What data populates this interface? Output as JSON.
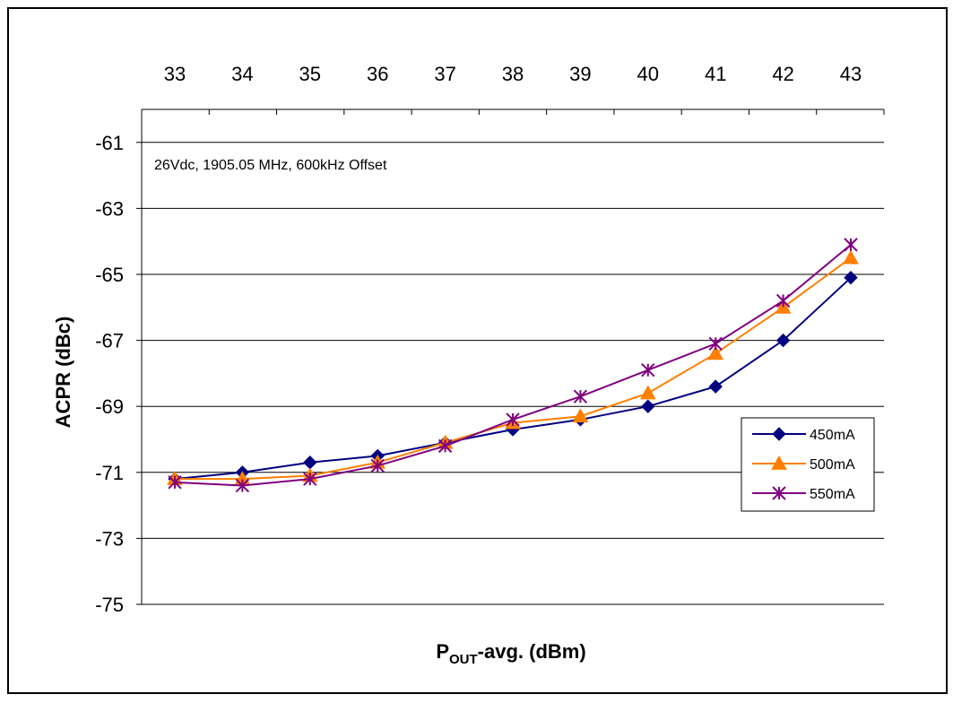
{
  "chart_data": {
    "type": "line",
    "title": "",
    "xlabel": {
      "main": "P",
      "subscript": "OUT",
      "rest": "-avg. (dBm)"
    },
    "ylabel": "ACPR (dBc)",
    "annotation": "26Vdc, 1905.05 MHz, 600kHz Offset",
    "xlim": [
      33,
      43
    ],
    "ylim": [
      -75,
      -60
    ],
    "x_ticks": [
      "33",
      "34",
      "35",
      "36",
      "37",
      "38",
      "39",
      "40",
      "41",
      "42",
      "43"
    ],
    "y_ticks": [
      "-61",
      "-63",
      "-65",
      "-67",
      "-69",
      "-71",
      "-73",
      "-75"
    ],
    "x_axis_position": "top",
    "grid": "horizontal",
    "legend_position": "right",
    "x": [
      33,
      34,
      35,
      36,
      37,
      38,
      39,
      40,
      41,
      42,
      43
    ],
    "series": [
      {
        "name": "450mA",
        "color": "#000080",
        "marker": "diamond",
        "values": [
          -71.2,
          -71.0,
          -70.7,
          -70.5,
          -70.1,
          -69.7,
          -69.4,
          -69.0,
          -68.4,
          -67.0,
          -65.1
        ]
      },
      {
        "name": "500mA",
        "color": "#FF7F00",
        "marker": "triangle",
        "values": [
          -71.2,
          -71.2,
          -71.1,
          -70.7,
          -70.1,
          -69.5,
          -69.3,
          -68.6,
          -67.4,
          -66.0,
          -64.5
        ]
      },
      {
        "name": "550mA",
        "color": "#800080",
        "marker": "star",
        "values": [
          -71.3,
          -71.4,
          -71.2,
          -70.8,
          -70.2,
          -69.4,
          -68.7,
          -67.9,
          -67.1,
          -65.8,
          -64.1
        ]
      }
    ]
  }
}
